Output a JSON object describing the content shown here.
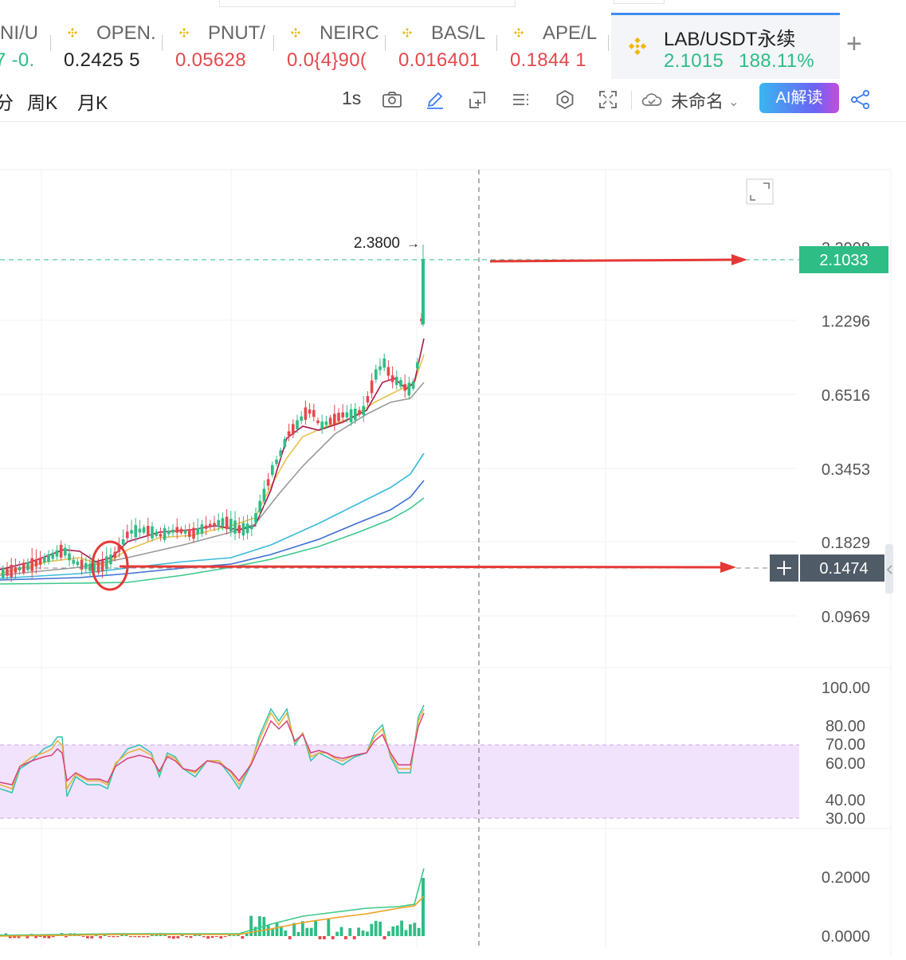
{
  "tabs": [
    {
      "symbol": "NI/U",
      "price": "7 -0.",
      "price_color": "#2ebd85",
      "coin": false
    },
    {
      "symbol": "OPEN.",
      "price": "0.2425 5",
      "price_color": "#222222",
      "coin": true
    },
    {
      "symbol": "PNUT/",
      "price": "0.05628",
      "price_color": "#e5484d",
      "coin": true
    },
    {
      "symbol": "NEIRC",
      "price": "0.0{4}90(",
      "price_color": "#e5484d",
      "coin": true
    },
    {
      "symbol": "BAS/L",
      "price": "0.016401",
      "price_color": "#e5484d",
      "coin": true
    },
    {
      "symbol": "APE/L",
      "price": "0.1844 1",
      "price_color": "#e5484d",
      "coin": true
    }
  ],
  "active_tab": {
    "symbol": "LAB/USDT永续",
    "price": "2.1015",
    "change": "188.11%",
    "color": "#2ebd85"
  },
  "add_tab_icon": "plus-icon",
  "toolbar": {
    "timeframes": [
      "分",
      "周K",
      "月K"
    ],
    "interval": "1s",
    "icons": [
      "camera-icon",
      "pencil-icon",
      "add-box-icon",
      "indicators-icon",
      "settings-icon",
      "fullscreen-icon"
    ],
    "save_icon": "cloud-icon",
    "save_label": "未命名",
    "ai_label": "AI解读",
    "share_icon": "share-icon"
  },
  "chart": {
    "expand_icon": "expand-icon",
    "high_marker": "2.3800",
    "current_price": "2.1033",
    "crosshair_price": "0.1474",
    "crosshair_icon": "plus-icon",
    "price_ticks": [
      "2.2998",
      "1.2296",
      "0.6516",
      "0.3453",
      "0.1829",
      "0.0969"
    ],
    "osc_ticks": [
      "100.00",
      "80.00",
      "70.00",
      "60.00",
      "40.00",
      "30.00"
    ],
    "vol_ticks": [
      "0.2000",
      "0.0000"
    ],
    "colors": {
      "up": "#2ebd85",
      "down": "#e5484d",
      "arrow": "#e53935",
      "band": "#f1e3fb",
      "current_bg": "#2ebd85",
      "crosshair_bg": "#4f5b66"
    }
  }
}
